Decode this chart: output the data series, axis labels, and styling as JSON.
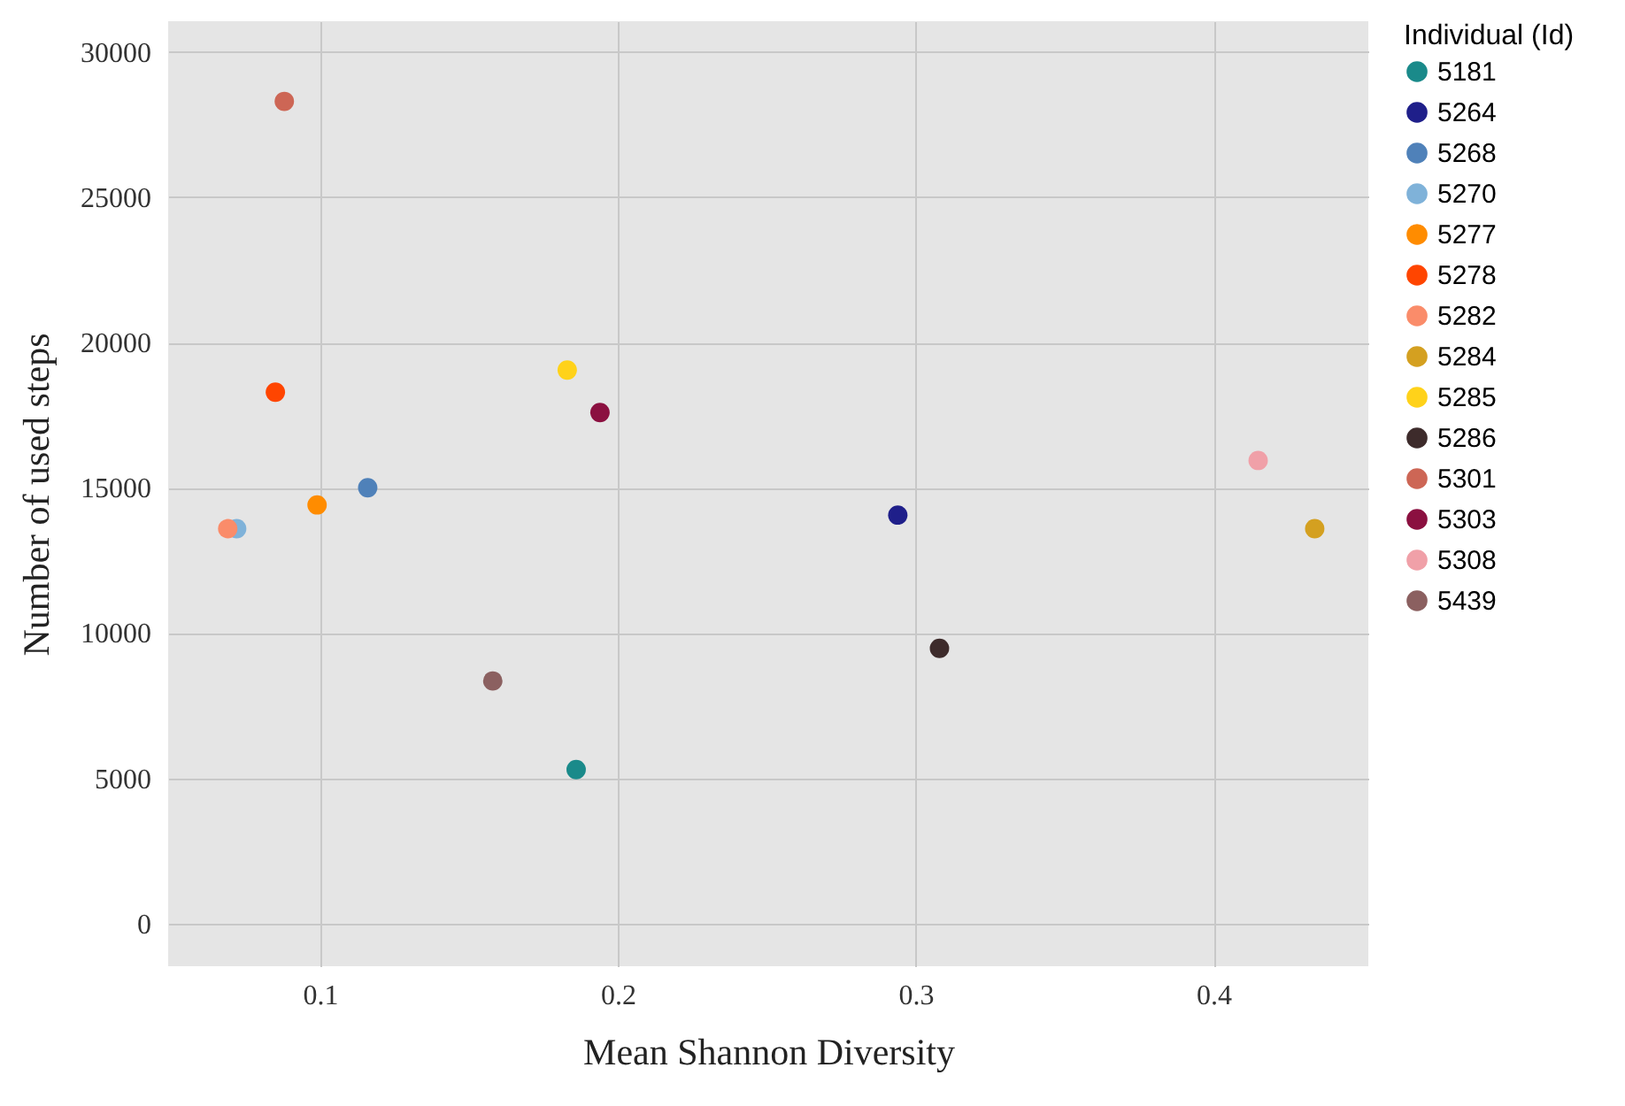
{
  "chart_data": {
    "type": "scatter",
    "xlabel": "Mean Shannon Diversity",
    "ylabel": "Number of used steps",
    "legend_title": "Individual (Id)",
    "legend": "right",
    "grid": true,
    "marker": "circle",
    "xlim": [
      0.049,
      0.452
    ],
    "xticks": [
      0.1,
      0.2,
      0.3,
      0.4
    ],
    "ylim": [
      -1470,
      31060
    ],
    "yticks": [
      0,
      5000,
      10000,
      15000,
      20000,
      25000,
      30000
    ],
    "series": [
      {
        "name": "5181",
        "color": "#1a8a8a",
        "x": [
          0.186
        ],
        "values": [
          5300
        ]
      },
      {
        "name": "5264",
        "color": "#1f1f8a",
        "x": [
          0.294
        ],
        "values": [
          14060
        ]
      },
      {
        "name": "5268",
        "color": "#4f81b9",
        "x": [
          0.116
        ],
        "values": [
          15000
        ]
      },
      {
        "name": "5270",
        "color": "#7fb2d9",
        "x": [
          0.072
        ],
        "values": [
          13590
        ]
      },
      {
        "name": "5277",
        "color": "#ff8c00",
        "x": [
          0.099
        ],
        "values": [
          14410
        ]
      },
      {
        "name": "5278",
        "color": "#ff4500",
        "x": [
          0.085
        ],
        "values": [
          18290
        ]
      },
      {
        "name": "5282",
        "color": "#fa8c6a",
        "x": [
          0.069
        ],
        "values": [
          13590
        ]
      },
      {
        "name": "5284",
        "color": "#d4a020",
        "x": [
          0.434
        ],
        "values": [
          13590
        ]
      },
      {
        "name": "5285",
        "color": "#ffd21a",
        "x": [
          0.183
        ],
        "values": [
          19050
        ]
      },
      {
        "name": "5286",
        "color": "#3d2b2b",
        "x": [
          0.308
        ],
        "values": [
          9470
        ]
      },
      {
        "name": "5301",
        "color": "#cd6655",
        "x": [
          0.088
        ],
        "values": [
          28300
        ]
      },
      {
        "name": "5303",
        "color": "#8b1040",
        "x": [
          0.194
        ],
        "values": [
          17590
        ]
      },
      {
        "name": "5308",
        "color": "#f0a0a8",
        "x": [
          0.415
        ],
        "values": [
          15940
        ]
      },
      {
        "name": "5439",
        "color": "#8b6060",
        "x": [
          0.158
        ],
        "values": [
          8350
        ]
      }
    ]
  }
}
